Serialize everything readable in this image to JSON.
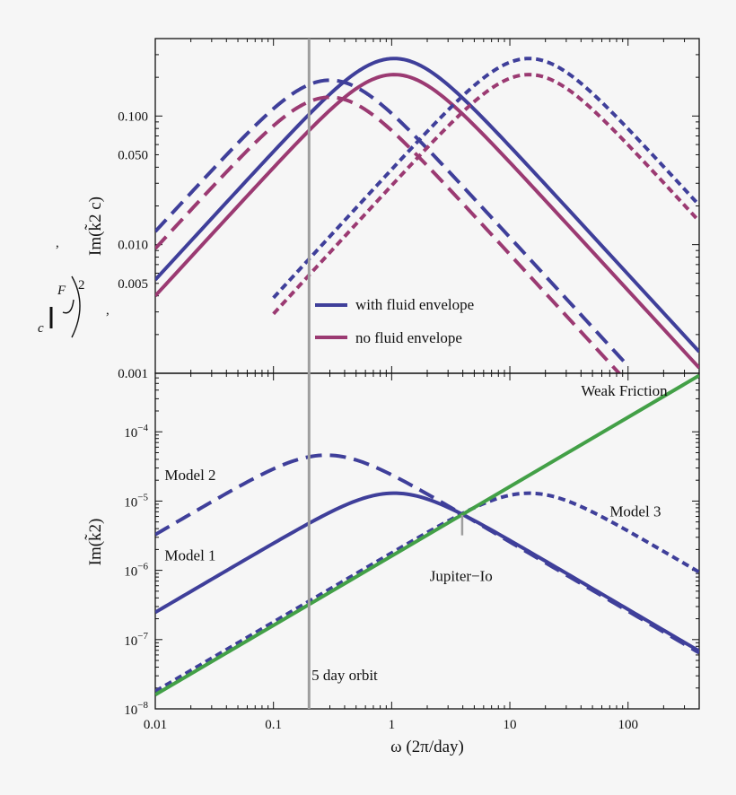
{
  "colors": {
    "blue": "#3f3f9a",
    "magenta": "#9b3a72",
    "green": "#43a047",
    "gray": "#9e9e9e",
    "frame": "#111111"
  },
  "chart_data": [
    {
      "type": "line",
      "xscale": "log",
      "yscale": "log",
      "xlim": [
        0.01,
        400
      ],
      "ylim": [
        0.001,
        0.4
      ],
      "ylabel": "Im(k̃2 c)",
      "yticks": [
        0.001,
        0.005,
        0.01,
        0.05,
        0.1
      ],
      "ytick_labels": [
        "0.001",
        "0.005",
        "0.010",
        "0.050",
        "0.100"
      ],
      "legend": {
        "placement": "bottom-center",
        "entries": [
          {
            "label": "with fluid envelope",
            "color": "blue"
          },
          {
            "label": "no fluid envelope",
            "color": "magenta"
          }
        ]
      },
      "series": [
        {
          "group": "with fluid envelope",
          "style": "solid",
          "color": "blue",
          "peak_x": 1.05,
          "peak_y": 0.28,
          "x": [
            0.01,
            0.1,
            1.05,
            10,
            100,
            400
          ],
          "y": [
            0.0067,
            0.066,
            0.28,
            0.045,
            0.0044,
            0.0011
          ]
        },
        {
          "group": "no fluid envelope",
          "style": "solid",
          "color": "magenta",
          "peak_x": 1.05,
          "peak_y": 0.21,
          "x": [
            0.01,
            0.1,
            1.05,
            10,
            100,
            400
          ],
          "y": [
            0.0045,
            0.045,
            0.21,
            0.034,
            0.0033,
            0.00083
          ]
        },
        {
          "group": "with fluid envelope",
          "style": "dashed",
          "color": "blue",
          "peak_x": 0.3,
          "peak_y": 0.19,
          "x": [
            0.01,
            0.1,
            0.3,
            1,
            10,
            100
          ],
          "y": [
            0.016,
            0.125,
            0.19,
            0.082,
            0.0085,
            0.00085
          ]
        },
        {
          "group": "no fluid envelope",
          "style": "dashed",
          "color": "magenta",
          "peak_x": 0.3,
          "peak_y": 0.14,
          "x": [
            0.01,
            0.1,
            0.3,
            1,
            10,
            100
          ],
          "y": [
            0.0105,
            0.095,
            0.14,
            0.06,
            0.0063,
            0.00063
          ]
        },
        {
          "group": "with fluid envelope",
          "style": "dotted",
          "color": "blue",
          "peak_x": 14.5,
          "peak_y": 0.28,
          "x": [
            0.1,
            1,
            14.5,
            100,
            400
          ],
          "y": [
            0.0057,
            0.055,
            0.28,
            0.08,
            0.022
          ]
        },
        {
          "group": "no fluid envelope",
          "style": "dotted",
          "color": "magenta",
          "peak_x": 14.5,
          "peak_y": 0.21,
          "x": [
            0.1,
            1,
            14.5,
            100,
            400
          ],
          "y": [
            0.0043,
            0.041,
            0.21,
            0.06,
            0.016
          ]
        }
      ]
    },
    {
      "type": "line",
      "xscale": "log",
      "yscale": "log",
      "xlim": [
        0.01,
        400
      ],
      "ylim": [
        1e-08,
        0.0007
      ],
      "xlabel": "ω (2π/day)",
      "ylabel": "Im(k̃2)",
      "xticks": [
        0.01,
        0.1,
        1,
        10,
        100
      ],
      "xtick_labels": [
        "0.01",
        "0.1",
        "1",
        "10",
        "100"
      ],
      "yticks": [
        1e-08,
        1e-07,
        1e-06,
        1e-05,
        0.0001
      ],
      "ytick_labels": [
        "10−8",
        "10−7",
        "10−6",
        "10−5",
        "10−4"
      ],
      "annotations": [
        {
          "text": "Weak Friction",
          "x": 40,
          "y": 0.00033
        },
        {
          "text": "Model 2",
          "x": 0.012,
          "y": 2e-05
        },
        {
          "text": "Model 1",
          "x": 0.012,
          "y": 1.4e-06
        },
        {
          "text": "Model 3",
          "x": 70,
          "y": 6e-06
        },
        {
          "text": "Jupiter−Io",
          "x": 2.1,
          "y": 7e-07
        },
        {
          "text": "5 day orbit",
          "x": 0.21,
          "y": 2.6e-08
        }
      ],
      "series": [
        {
          "name": "Model 1",
          "style": "solid",
          "color": "blue",
          "peak_x": 1.05,
          "peak_y": 1.3e-05,
          "x": [
            0.01,
            0.1,
            1.05,
            10,
            100,
            400
          ],
          "y": [
            2.4e-07,
            2.4e-06,
            1.3e-05,
            2.1e-06,
            2e-07,
            6e-08
          ]
        },
        {
          "name": "Model 2",
          "style": "dashed",
          "color": "blue",
          "peak_x": 0.28,
          "peak_y": 4.6e-05,
          "x": [
            0.01,
            0.1,
            0.28,
            1,
            10,
            100,
            400
          ],
          "y": [
            3.6e-06,
            2.6e-05,
            4.6e-05,
            2.3e-05,
            2.3e-06,
            2.3e-07,
            6.5e-08
          ]
        },
        {
          "name": "Model 3",
          "style": "dotted",
          "color": "blue",
          "peak_x": 14.5,
          "peak_y": 1.3e-05,
          "x": [
            0.01,
            0.1,
            1,
            4,
            14.5,
            100,
            400
          ],
          "y": [
            1.7e-08,
            1.7e-07,
            1.7e-06,
            6.8e-06,
            1.3e-05,
            3.7e-06,
            9e-07
          ]
        },
        {
          "name": "Weak Friction",
          "style": "solid",
          "color": "green",
          "x": [
            0.01,
            400
          ],
          "y": [
            1.6e-08,
            0.00065
          ]
        }
      ]
    }
  ],
  "reference_lines": [
    {
      "label": "5 day orbit",
      "x": 0.2,
      "color": "gray"
    },
    {
      "label": "Jupiter−Io",
      "x": 3.95,
      "y_from": 3.2e-06,
      "y_to": 6.3e-06,
      "color": "gray"
    }
  ],
  "left_margin_fragments": [
    ",",
    ",",
    "F",
    "c",
    "2"
  ]
}
